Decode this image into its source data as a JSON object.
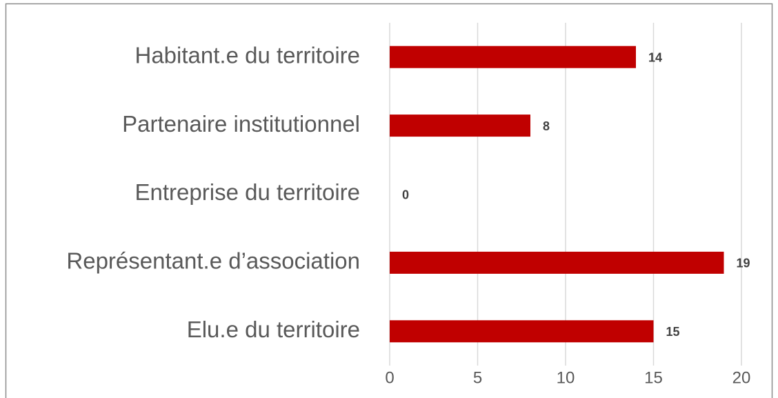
{
  "chart_data": {
    "type": "bar",
    "orientation": "horizontal",
    "categories": [
      "Habitant.e du territoire",
      "Partenaire institutionnel",
      "Entreprise du territoire",
      "Représentant.e d’association",
      "Elu.e du territoire"
    ],
    "values": [
      14,
      8,
      0,
      19,
      15
    ],
    "color": "#c00000",
    "xlim": [
      0,
      20
    ],
    "xticks": [
      0,
      5,
      10,
      15,
      20
    ],
    "grid": true
  }
}
